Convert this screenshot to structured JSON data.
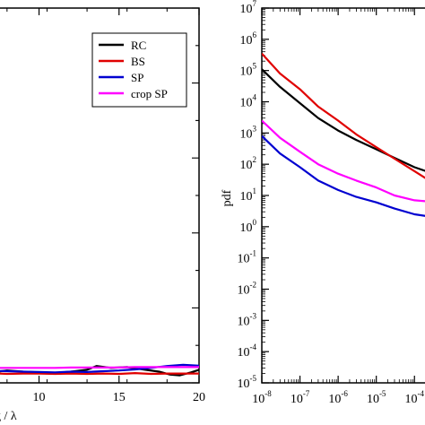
{
  "chart_data": [
    {
      "type": "line",
      "xlabel": "g / λ",
      "xlim": [
        7,
        20
      ],
      "ylim": [
        0,
        10
      ],
      "x_ticks": [
        "10",
        "15",
        "20"
      ],
      "legend": {
        "placement": "top-right",
        "entries": [
          "RC",
          "BS",
          "SP",
          "crop SP"
        ]
      },
      "series": [
        {
          "name": "RC",
          "color": "#000000",
          "x": [
            7,
            8,
            9,
            10,
            11,
            12,
            13,
            13.6,
            14.5,
            15.5,
            16.5,
            17.5,
            18.2,
            18.8,
            19.5,
            20
          ],
          "y": [
            0.28,
            0.33,
            0.3,
            0.28,
            0.26,
            0.3,
            0.35,
            0.45,
            0.4,
            0.42,
            0.36,
            0.3,
            0.22,
            0.2,
            0.28,
            0.35
          ]
        },
        {
          "name": "BS",
          "color": "#e00000",
          "x": [
            7,
            8,
            9,
            10,
            11,
            12,
            13,
            14,
            15,
            16,
            17,
            18,
            19,
            20
          ],
          "y": [
            0.26,
            0.24,
            0.25,
            0.25,
            0.24,
            0.25,
            0.24,
            0.25,
            0.24,
            0.26,
            0.24,
            0.25,
            0.25,
            0.25
          ]
        },
        {
          "name": "SP",
          "color": "#0000d0",
          "x": [
            7,
            8,
            9,
            10,
            11,
            12,
            13,
            14,
            15,
            16,
            17,
            18,
            19,
            20
          ],
          "y": [
            0.32,
            0.31,
            0.3,
            0.29,
            0.28,
            0.3,
            0.29,
            0.31,
            0.33,
            0.36,
            0.4,
            0.45,
            0.48,
            0.46
          ]
        },
        {
          "name": "crop SP",
          "color": "#ff00ff",
          "x": [
            7,
            8,
            9,
            10,
            11,
            12,
            13,
            14,
            15,
            16,
            17,
            18,
            19,
            20
          ],
          "y": [
            0.4,
            0.4,
            0.4,
            0.4,
            0.4,
            0.41,
            0.41,
            0.41,
            0.41,
            0.42,
            0.42,
            0.42,
            0.42,
            0.42
          ]
        }
      ]
    },
    {
      "type": "line",
      "xlabel": "",
      "ylabel": "pdf",
      "xscale": "log",
      "yscale": "log",
      "xlim": [
        1e-08,
        0.0005
      ],
      "ylim": [
        1e-05,
        10000000.0
      ],
      "x_ticks": [
        "10^-8",
        "10^-7",
        "10^-6",
        "10^-5",
        "10^-4"
      ],
      "y_ticks": [
        "10^-5",
        "10^-4",
        "10^-3",
        "10^-2",
        "10^-1",
        "10^0",
        "10^1",
        "10^2",
        "10^3",
        "10^4",
        "10^5",
        "10^6",
        "10^7"
      ],
      "series": [
        {
          "name": "RC",
          "color": "#000000",
          "x": [
            1e-08,
            3e-08,
            1e-07,
            3e-07,
            1e-06,
            3e-06,
            1e-05,
            3e-05,
            0.0001,
            0.0002
          ],
          "y": [
            110000,
            30000,
            9000,
            3000,
            1200,
            600,
            300,
            160,
            80,
            60
          ]
        },
        {
          "name": "BS",
          "color": "#e00000",
          "x": [
            1e-08,
            3e-08,
            1e-07,
            3e-07,
            1e-06,
            3e-06,
            1e-05,
            3e-05,
            0.0001,
            0.0002
          ],
          "y": [
            350000,
            80000,
            25000,
            7000,
            2500,
            900,
            350,
            150,
            60,
            35
          ]
        },
        {
          "name": "SP",
          "color": "#0000d0",
          "x": [
            1e-08,
            3e-08,
            1e-07,
            3e-07,
            1e-06,
            3e-06,
            1e-05,
            3e-05,
            0.0001,
            0.0002
          ],
          "y": [
            800,
            220,
            80,
            30,
            15,
            9,
            6,
            3.8,
            2.5,
            2.2
          ]
        },
        {
          "name": "crop SP",
          "color": "#ff00ff",
          "x": [
            1e-08,
            3e-08,
            1e-07,
            3e-07,
            1e-06,
            3e-06,
            1e-05,
            3e-05,
            0.0001,
            0.0002
          ],
          "y": [
            2500,
            700,
            250,
            100,
            50,
            30,
            18,
            10,
            7,
            6.5
          ]
        }
      ]
    }
  ]
}
